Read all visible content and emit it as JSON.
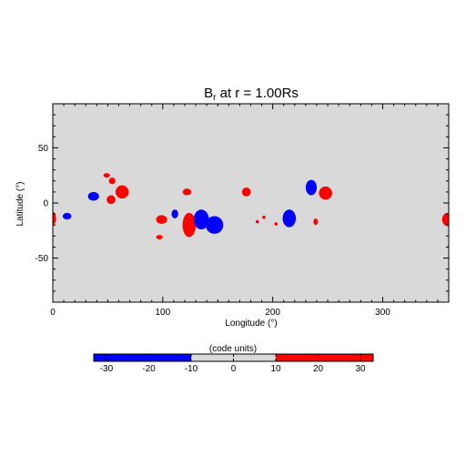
{
  "chart_data": {
    "type": "heatmap",
    "title": "B_r at r = 1.00Rs",
    "title_parts": {
      "lead": "B",
      "sub": "r",
      "rest": " at r = 1.00Rs"
    },
    "xlabel": "Longitude (°)",
    "ylabel": "Latitude (°)",
    "xlim": [
      0,
      360
    ],
    "ylim": [
      -90,
      90
    ],
    "x_ticks": [
      0,
      100,
      200,
      300
    ],
    "y_ticks": [
      -50,
      0,
      50
    ],
    "background_color": "#d9d9d9",
    "positive_color": "#ff0000",
    "negative_color": "#0000ff",
    "regions": [
      {
        "polarity": "positive",
        "lon": 0,
        "lat": -14,
        "dlon": 3,
        "dlat": 6
      },
      {
        "polarity": "negative",
        "lon": 13,
        "lat": -12,
        "dlon": 4,
        "dlat": 3
      },
      {
        "polarity": "negative",
        "lon": 37,
        "lat": 6,
        "dlon": 5,
        "dlat": 4
      },
      {
        "polarity": "positive",
        "lon": 49,
        "lat": 25,
        "dlon": 3,
        "dlat": 2
      },
      {
        "polarity": "positive",
        "lon": 54,
        "lat": 20,
        "dlon": 3,
        "dlat": 3
      },
      {
        "polarity": "positive",
        "lon": 63,
        "lat": 10,
        "dlon": 6,
        "dlat": 6
      },
      {
        "polarity": "positive",
        "lon": 53,
        "lat": 3,
        "dlon": 4,
        "dlat": 4
      },
      {
        "polarity": "positive",
        "lon": 99,
        "lat": -15,
        "dlon": 5,
        "dlat": 4
      },
      {
        "polarity": "positive",
        "lon": 97,
        "lat": -31,
        "dlon": 3,
        "dlat": 2
      },
      {
        "polarity": "negative",
        "lon": 111,
        "lat": -10,
        "dlon": 3,
        "dlat": 4
      },
      {
        "polarity": "positive",
        "lon": 122,
        "lat": 10,
        "dlon": 4,
        "dlat": 3
      },
      {
        "polarity": "positive",
        "lon": 124,
        "lat": -20,
        "dlon": 6,
        "dlat": 11
      },
      {
        "polarity": "negative",
        "lon": 135,
        "lat": -15,
        "dlon": 7,
        "dlat": 9
      },
      {
        "polarity": "negative",
        "lon": 147,
        "lat": -20,
        "dlon": 8,
        "dlat": 8
      },
      {
        "polarity": "positive",
        "lon": 176,
        "lat": 10,
        "dlon": 4,
        "dlat": 4
      },
      {
        "polarity": "positive",
        "lon": 186,
        "lat": -17,
        "dlon": 1.5,
        "dlat": 1.5
      },
      {
        "polarity": "positive",
        "lon": 192,
        "lat": -13,
        "dlon": 1.5,
        "dlat": 1.5
      },
      {
        "polarity": "positive",
        "lon": 203,
        "lat": -19,
        "dlon": 1.5,
        "dlat": 1.5
      },
      {
        "polarity": "negative",
        "lon": 215,
        "lat": -14,
        "dlon": 6,
        "dlat": 8
      },
      {
        "polarity": "negative",
        "lon": 235,
        "lat": 14,
        "dlon": 5,
        "dlat": 7
      },
      {
        "polarity": "positive",
        "lon": 248,
        "lat": 9,
        "dlon": 6,
        "dlat": 6
      },
      {
        "polarity": "positive",
        "lon": 239,
        "lat": -17,
        "dlon": 2,
        "dlat": 3
      },
      {
        "polarity": "positive",
        "lon": 359,
        "lat": -15,
        "dlon": 5,
        "dlat": 6
      }
    ],
    "colorbar": {
      "label": "(code units)",
      "range": [
        -33,
        33
      ],
      "ticks": [
        -30,
        -20,
        -10,
        0,
        10,
        20,
        30
      ],
      "negative_threshold": -10,
      "positive_threshold": 10
    }
  }
}
